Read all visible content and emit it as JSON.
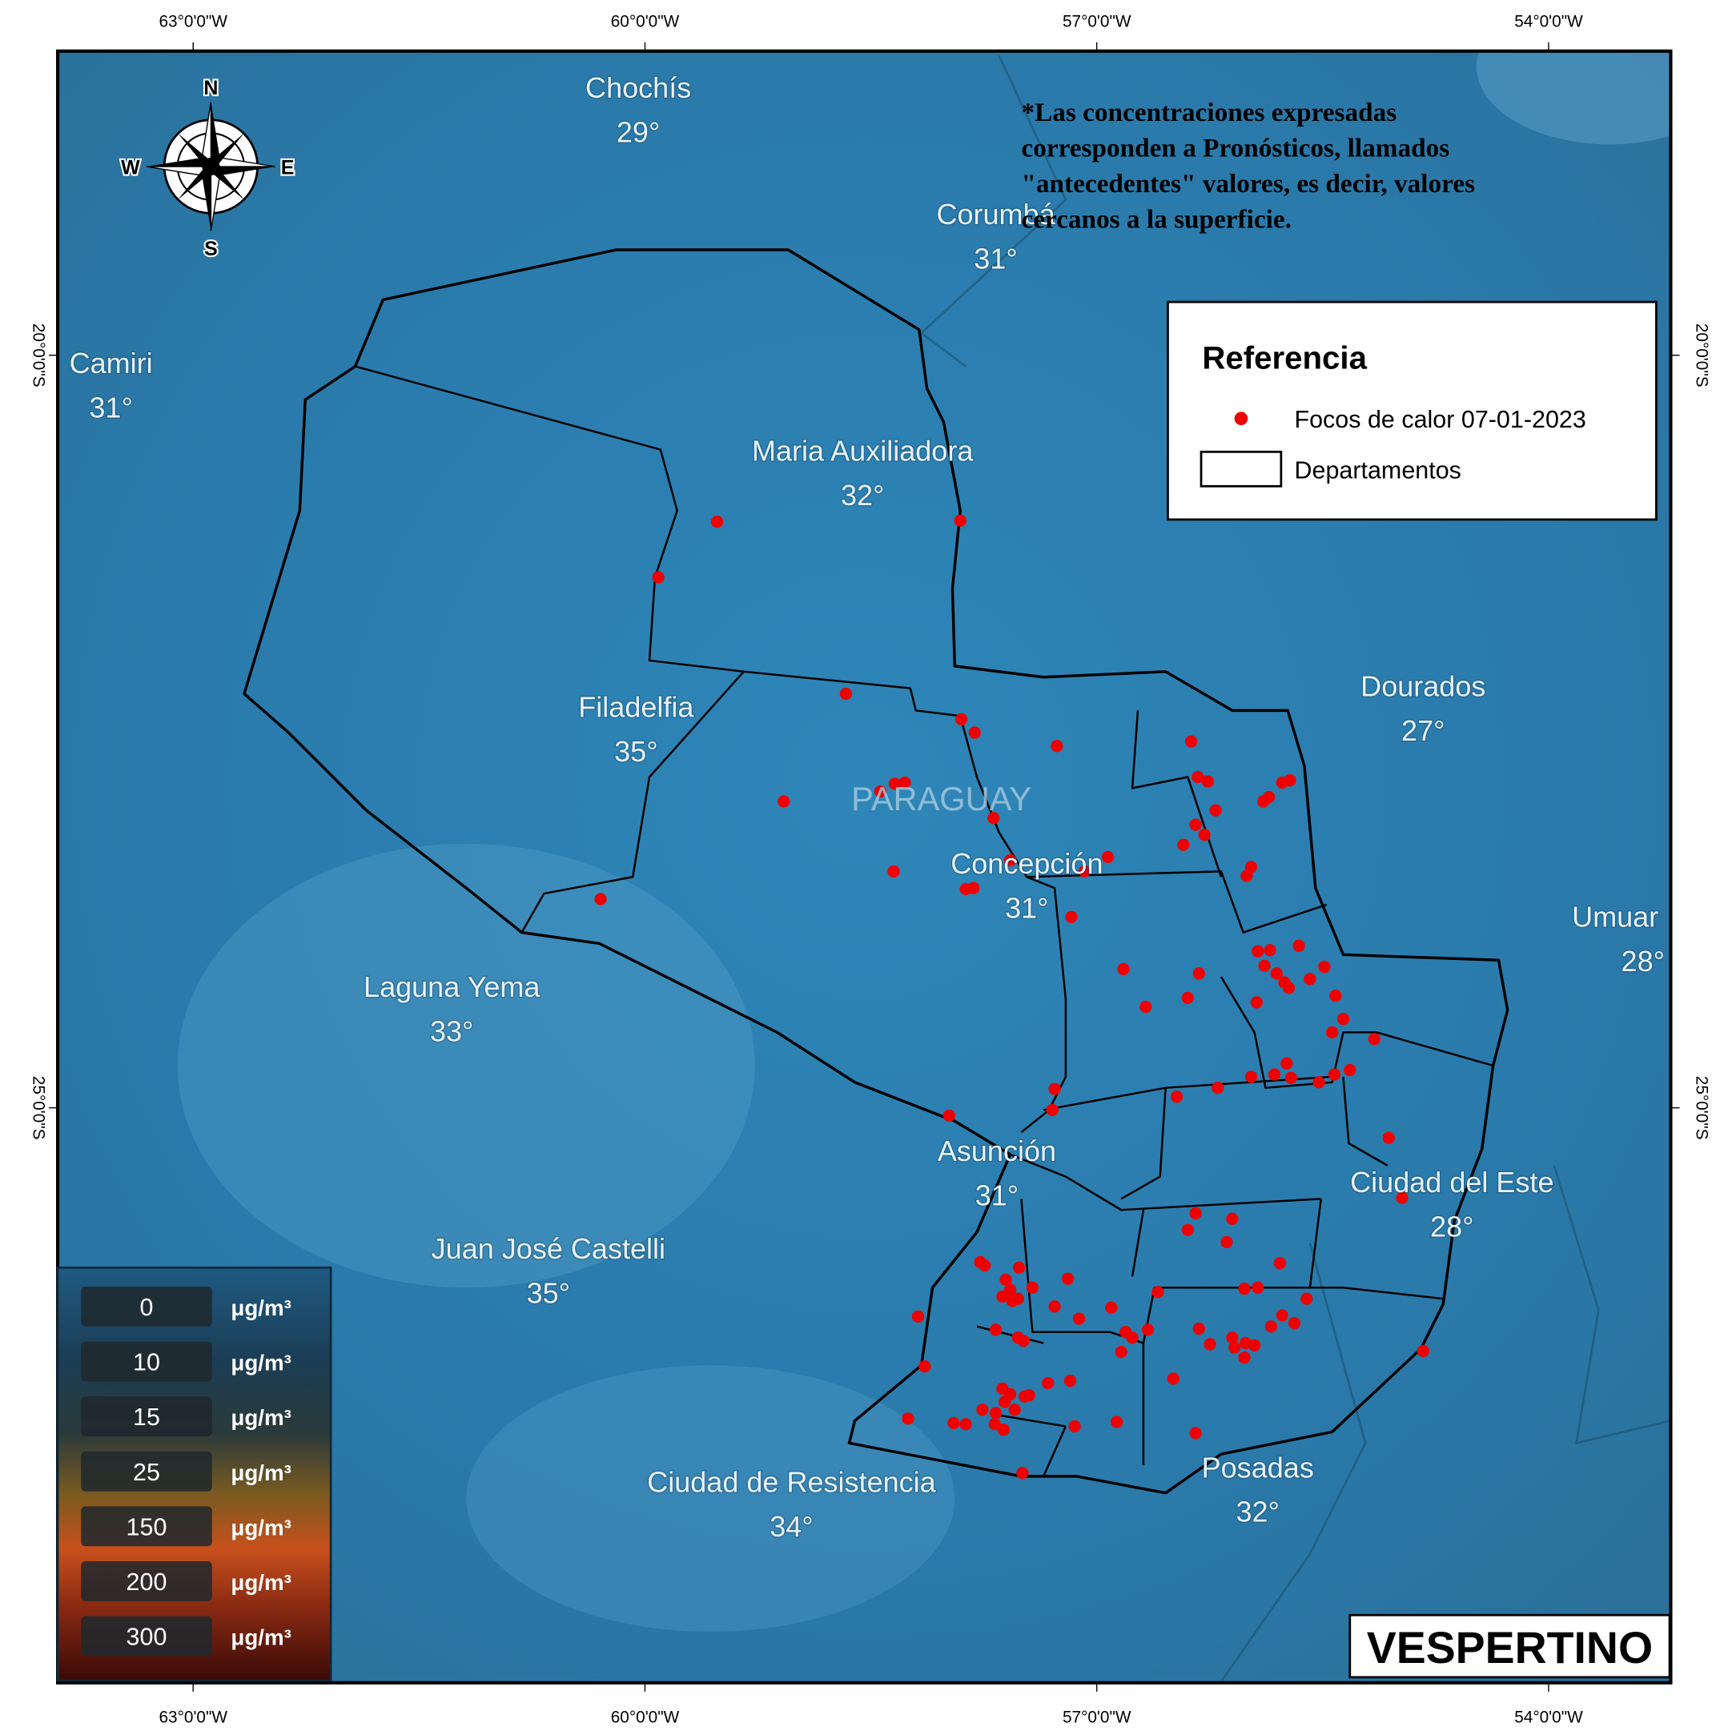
{
  "map": {
    "graticule": {
      "lon": [
        "63°0'0\"W",
        "60°0'0\"W",
        "57°0'0\"W",
        "54°0'0\"W"
      ],
      "lat": [
        "20°0'0\"S",
        "25°0'0\"S"
      ]
    },
    "compass": [
      "N",
      "E",
      "S",
      "W"
    ],
    "places": [
      {
        "name": "Chochís",
        "temp": "29°"
      },
      {
        "name": "Corumbá",
        "temp": "31°"
      },
      {
        "name": "Camiri",
        "temp": "31°"
      },
      {
        "name": "Maria Auxiliadora",
        "temp": "32°"
      },
      {
        "name": "Filadelfia",
        "temp": "35°"
      },
      {
        "name": "Dourados",
        "temp": "27°"
      },
      {
        "name": "Concepción",
        "temp": "31°"
      },
      {
        "name": "Umuar",
        "temp": "28°"
      },
      {
        "name": "Laguna Yema",
        "temp": "33°"
      },
      {
        "name": "Asunción",
        "temp": "31°"
      },
      {
        "name": "Ciudad del Este",
        "temp": "28°"
      },
      {
        "name": "Juan José Castelli",
        "temp": "35°"
      },
      {
        "name": "Ciudad de Resistencia",
        "temp": "34°"
      },
      {
        "name": "Posadas",
        "temp": "32°"
      }
    ],
    "country_label": "PARAGUAY",
    "note": [
      "*Las concentraciones expresadas",
      "corresponden a Pronósticos, llamados",
      "\"antecedentes\" valores, es decir, valores",
      "cercanos a la superficie."
    ],
    "legend": {
      "title": "Referencia",
      "items": [
        "Focos de calor 07-01-2023",
        "Departamentos"
      ]
    },
    "scale": {
      "values": [
        "0",
        "10",
        "15",
        "25",
        "150",
        "200",
        "300"
      ],
      "unit": "μg/m³"
    },
    "period": "VESPERTINO"
  }
}
